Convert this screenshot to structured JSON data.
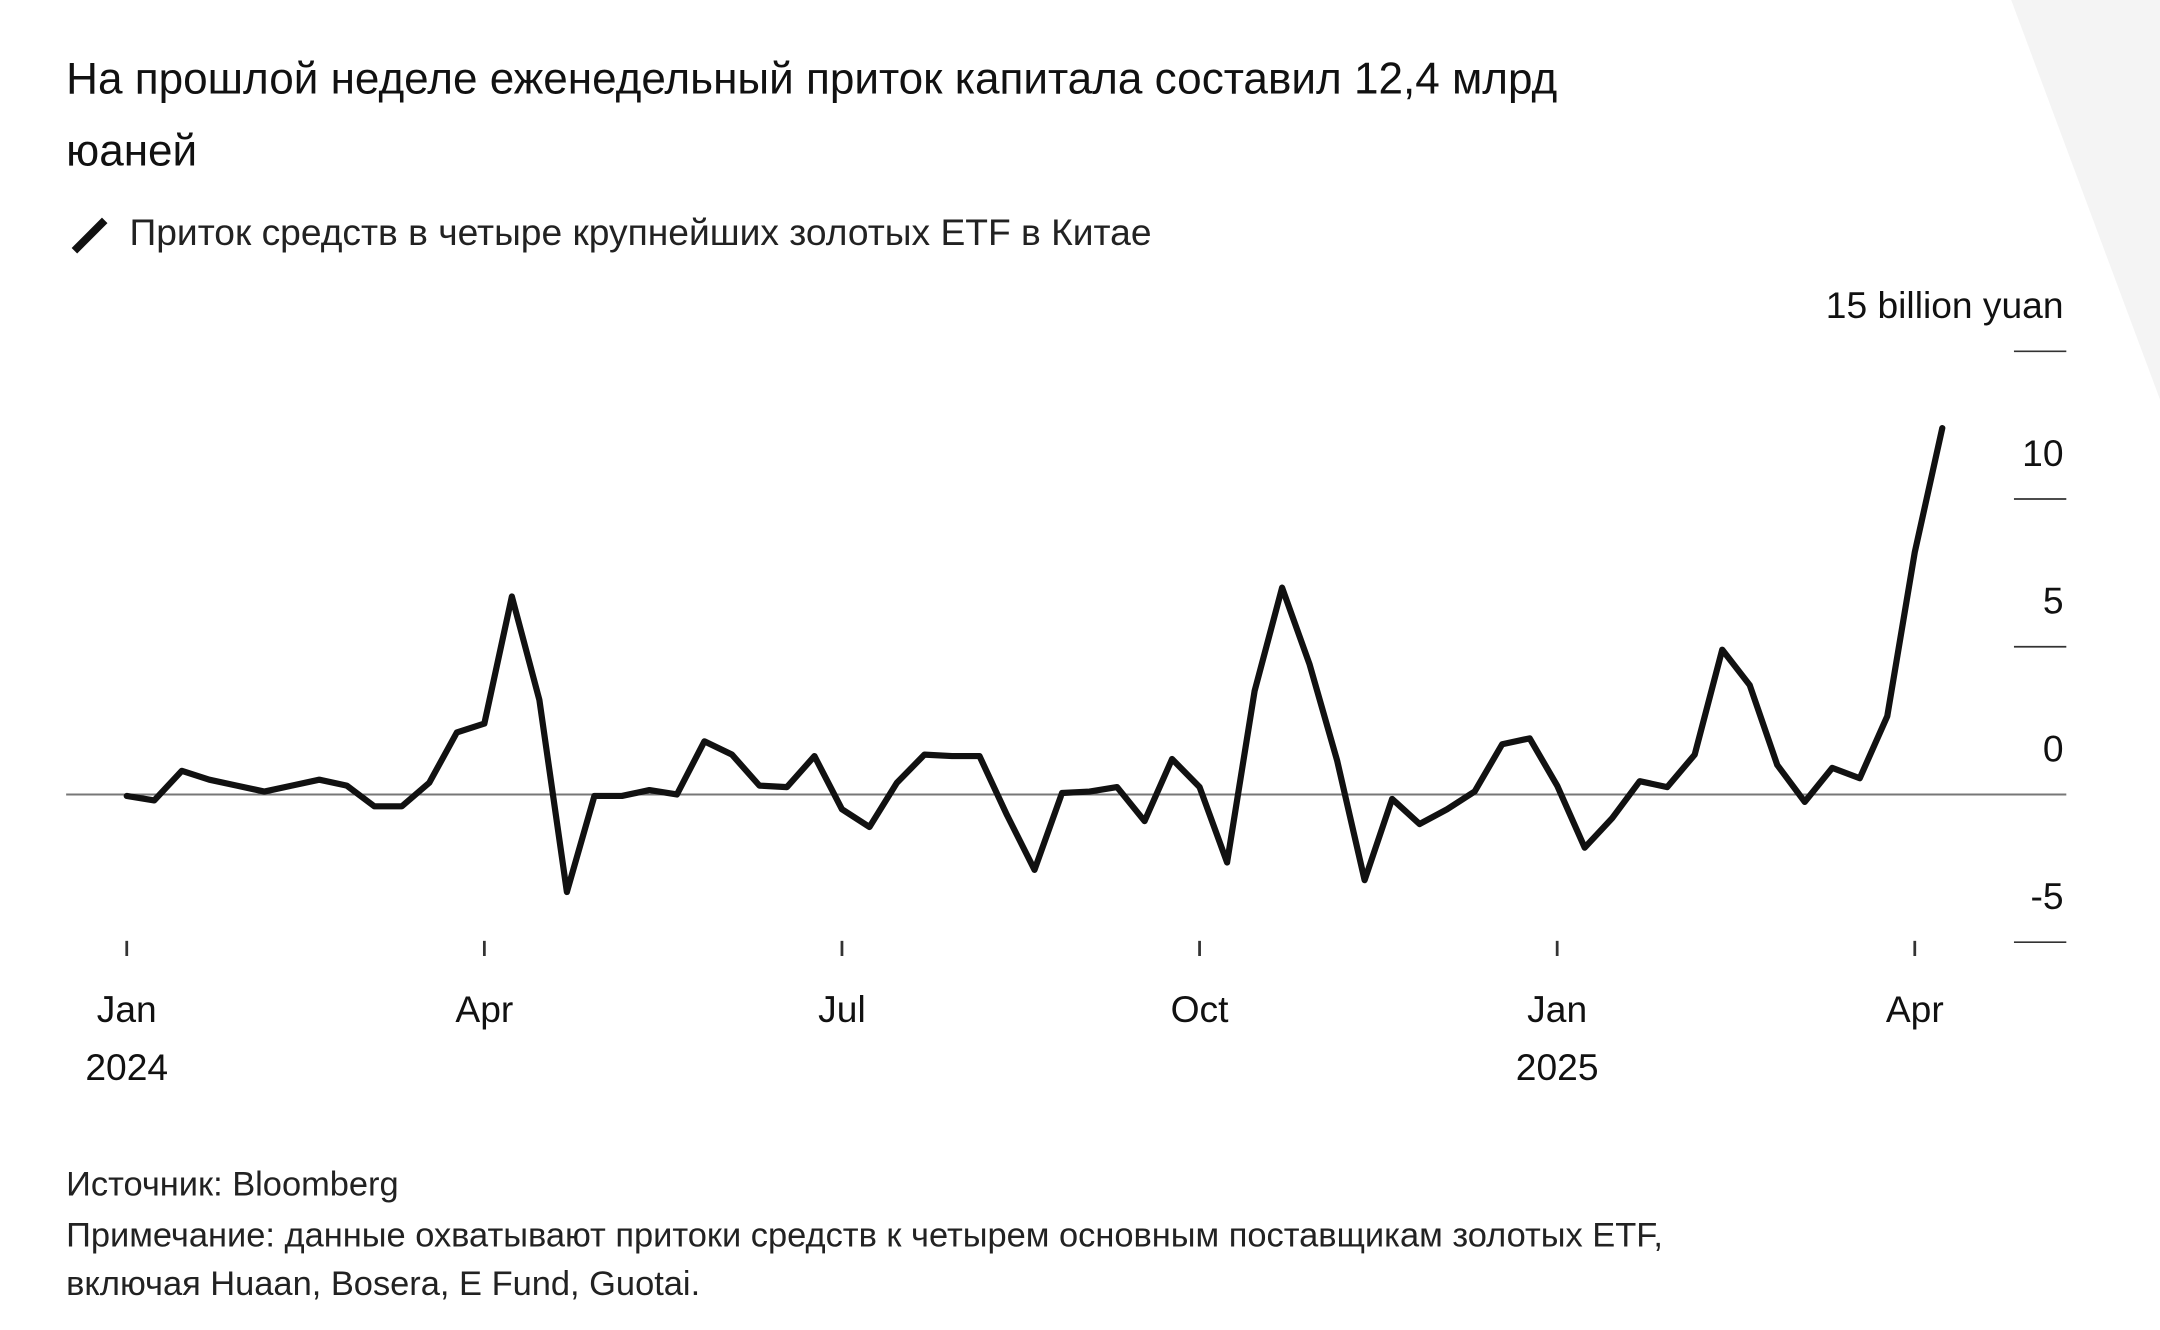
{
  "chart_data": {
    "type": "line",
    "title": [
      "На прошлой неделе еженедельный приток капитала составил 12,4 млрд",
      "юаней"
    ],
    "subtitle": "Приток средств в четыре крупнейших золотых ETF в Китае",
    "categories": [
      "Jan",
      null,
      null,
      null,
      null,
      null,
      null,
      null,
      null,
      null,
      null,
      null,
      null,
      "Apr",
      null,
      null,
      null,
      null,
      null,
      null,
      null,
      null,
      null,
      null,
      null,
      null,
      "Jul",
      null,
      null,
      null,
      null,
      null,
      null,
      null,
      null,
      null,
      null,
      null,
      null,
      "Oct",
      null,
      null,
      null,
      null,
      null,
      null,
      null,
      null,
      null,
      null,
      null,
      null,
      "Jan",
      null,
      null,
      null,
      null,
      null,
      null,
      null,
      null,
      null,
      null,
      null,
      null,
      "Apr",
      null
    ],
    "category_years": [
      "2024",
      null,
      null,
      null,
      null,
      null,
      null,
      null,
      null,
      null,
      null,
      null,
      null,
      null,
      null,
      null,
      null,
      null,
      null,
      null,
      null,
      null,
      null,
      null,
      null,
      null,
      null,
      null,
      null,
      null,
      null,
      null,
      null,
      null,
      null,
      null,
      null,
      null,
      null,
      null,
      null,
      null,
      null,
      null,
      null,
      null,
      null,
      null,
      null,
      null,
      null,
      null,
      "2025",
      null,
      null,
      null,
      null,
      null,
      null,
      null,
      null,
      null,
      null,
      null,
      null,
      null,
      null
    ],
    "series": [
      {
        "name": "Приток средств",
        "color": "#111111",
        "values": [
          -0.05,
          -0.2,
          0.8,
          0.5,
          0.3,
          0.1,
          0.3,
          0.5,
          0.3,
          -0.4,
          -0.4,
          0.4,
          2.1,
          2.4,
          6.7,
          3.2,
          -3.3,
          -0.05,
          -0.05,
          0.15,
          0,
          1.8,
          1.35,
          0.3,
          0.25,
          1.3,
          -0.5,
          -1.1,
          0.4,
          1.35,
          1.3,
          1.3,
          -0.7,
          -2.55,
          0.05,
          0.1,
          0.25,
          -0.9,
          1.2,
          0.25,
          -2.3,
          3.5,
          7.0,
          4.4,
          1.15,
          -2.9,
          -0.15,
          -1.0,
          -0.5,
          0.1,
          1.7,
          1.9,
          0.3,
          -1.8,
          -0.8,
          0.45,
          0.25,
          1.35,
          4.9,
          3.7,
          1.0,
          -0.25,
          0.9,
          0.55,
          2.65,
          8.2,
          12.4
        ]
      }
    ],
    "ylim": [
      -5,
      15
    ],
    "yticks": [
      -5,
      0,
      5,
      10,
      {
        "value": 15,
        "label": "15 billion yuan"
      }
    ],
    "source": "Источник: Bloomberg",
    "note": [
      "Примечание: данные охватывают притоки средств к четырем основным поставщикам золотых ETF,",
      "включая Huaan, Bosera, E Fund, Guotai."
    ]
  }
}
